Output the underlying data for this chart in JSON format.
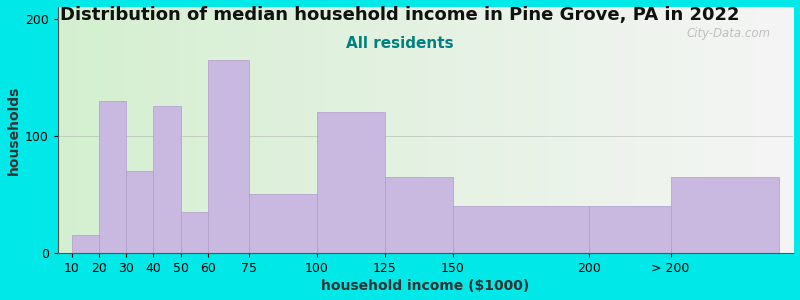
{
  "title": "Distribution of median household income in Pine Grove, PA in 2022",
  "subtitle": "All residents",
  "xlabel": "household income ($1000)",
  "ylabel": "households",
  "bar_labels": [
    "10",
    "20",
    "30",
    "40",
    "50",
    "60",
    "75",
    "100",
    "125",
    "150",
    "200",
    "> 200"
  ],
  "bar_heights": [
    15,
    130,
    70,
    125,
    35,
    165,
    50,
    120,
    65,
    40,
    40,
    65
  ],
  "bar_color": "#c9b8e0",
  "bar_edge_color": "#b09ccc",
  "background_color": "#00e8e8",
  "plot_bg_gradient_left": "#d4efd0",
  "plot_bg_gradient_right": "#f5f5f5",
  "yticks": [
    0,
    100,
    200
  ],
  "ylim": [
    0,
    210
  ],
  "watermark": "City-Data.com",
  "title_fontsize": 13,
  "subtitle_fontsize": 11,
  "axis_label_fontsize": 10,
  "subtitle_color": "#008080"
}
